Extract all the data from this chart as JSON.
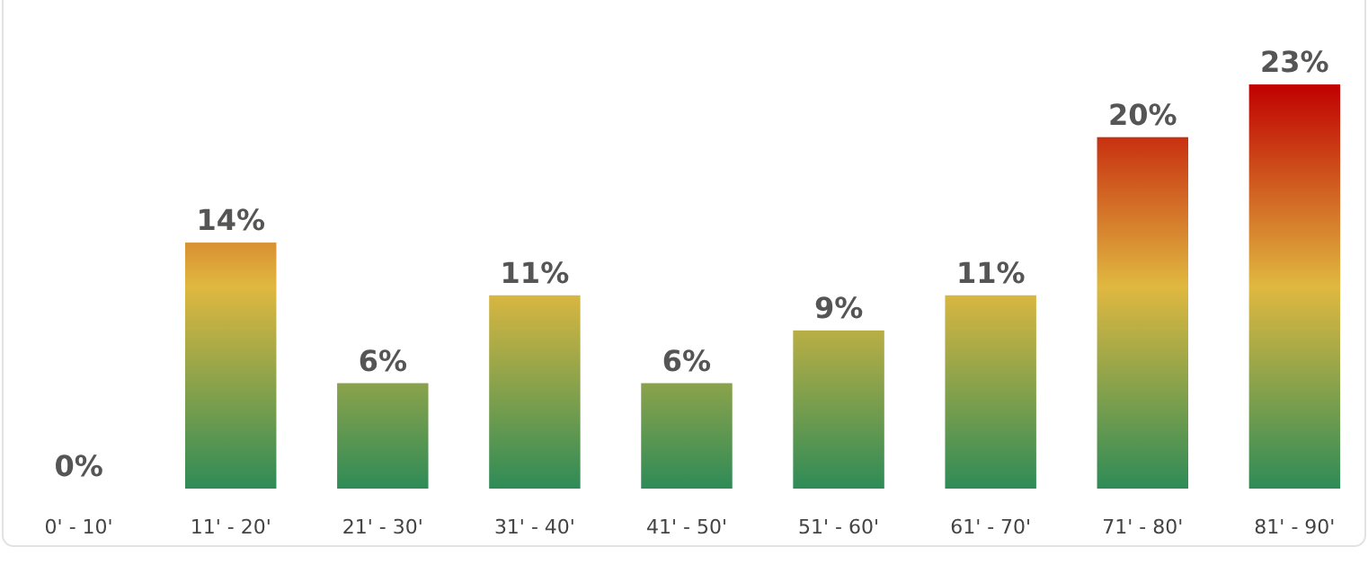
{
  "chart_data": {
    "type": "bar",
    "categories": [
      "0' - 10'",
      "11' - 20'",
      "21' - 30'",
      "31' - 40'",
      "41' - 50'",
      "51' - 60'",
      "61' - 70'",
      "71' - 80'",
      "81' - 90'"
    ],
    "values": [
      0,
      14,
      6,
      11,
      6,
      9,
      11,
      20,
      23
    ],
    "value_labels": [
      "0%",
      "14%",
      "6%",
      "11%",
      "6%",
      "9%",
      "11%",
      "20%",
      "23%"
    ],
    "grid": false
  }
}
